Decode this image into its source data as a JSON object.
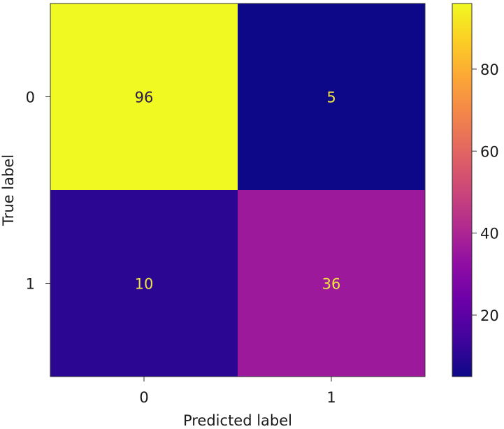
{
  "chart_data": {
    "type": "heatmap",
    "title": "",
    "xlabel": "Predicted label",
    "ylabel": "True label",
    "x_categories": [
      "0",
      "1"
    ],
    "y_categories": [
      "0",
      "1"
    ],
    "values": [
      [
        96,
        5
      ],
      [
        10,
        36
      ]
    ],
    "colormap": "plasma",
    "colorbar": {
      "range": [
        5,
        96
      ],
      "ticks": [
        20,
        40,
        60,
        80
      ]
    },
    "value_label_colors": {
      "on_bright": "#2d1a4a",
      "on_dark": "#f0e442"
    }
  }
}
